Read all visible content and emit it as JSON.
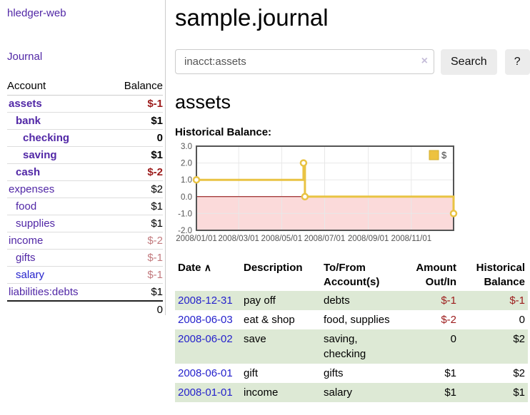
{
  "sidebar": {
    "title": "hledger-web",
    "journal_link": "Journal",
    "columns": [
      "Account",
      "Balance"
    ],
    "accounts": [
      {
        "name": "assets",
        "level": 1,
        "bold": true,
        "balance": "$-1"
      },
      {
        "name": "bank",
        "level": 2,
        "bold": true,
        "balance": "$1"
      },
      {
        "name": "checking",
        "level": 3,
        "bold": true,
        "balance": "0"
      },
      {
        "name": "saving",
        "level": 3,
        "bold": true,
        "balance": "$1"
      },
      {
        "name": "cash",
        "level": 2,
        "bold": true,
        "balance": "$-2"
      },
      {
        "name": "expenses",
        "level": 1,
        "bold": false,
        "balance": "$2"
      },
      {
        "name": "food",
        "level": 2,
        "bold": false,
        "balance": "$1"
      },
      {
        "name": "supplies",
        "level": 2,
        "bold": false,
        "balance": "$1"
      },
      {
        "name": "income",
        "level": 1,
        "bold": false,
        "balance": "$-2"
      },
      {
        "name": "gifts",
        "level": 2,
        "bold": false,
        "balance": "$-1"
      },
      {
        "name": "salary",
        "level": 2,
        "bold": false,
        "balance": "$-1",
        "blue": true
      },
      {
        "name": "liabilities:debts",
        "level": 1,
        "bold": false,
        "balance": "$1"
      }
    ],
    "total": "0"
  },
  "header": {
    "title": "sample.journal"
  },
  "search": {
    "value": "inacct:assets",
    "clear_icon": "×",
    "button_label": "Search",
    "help_label": "?"
  },
  "main": {
    "account_heading": "assets",
    "chart_label": "Historical Balance:"
  },
  "chart_data": {
    "type": "line",
    "step": true,
    "title": "Historical Balance of assets",
    "legend": [
      {
        "label": "$",
        "color": "#edc240"
      }
    ],
    "legend_position": "top-right",
    "grid": true,
    "ylim": [
      -2,
      3
    ],
    "xlim_days": [
      0,
      365
    ],
    "y_ticks": [
      {
        "v": 3,
        "label": "3.0"
      },
      {
        "v": 2,
        "label": "2.0"
      },
      {
        "v": 1,
        "label": "1.0"
      },
      {
        "v": 0,
        "label": "0.0"
      },
      {
        "v": -1,
        "label": "-1.0"
      },
      {
        "v": -2,
        "label": "-2.0"
      }
    ],
    "x_ticks": [
      {
        "day": 0,
        "label": "2008/01/01"
      },
      {
        "day": 60,
        "label": "2008/03/01"
      },
      {
        "day": 121,
        "label": "2008/05/01"
      },
      {
        "day": 182,
        "label": "2008/07/01"
      },
      {
        "day": 244,
        "label": "2008/09/01"
      },
      {
        "day": 305,
        "label": "2008/11/01"
      }
    ],
    "series": [
      {
        "name": "$",
        "color": "#e9c343",
        "points": [
          {
            "date": "2008-01-01",
            "day": 0,
            "value": 1
          },
          {
            "date": "2008-06-01",
            "day": 152,
            "value": 2
          },
          {
            "date": "2008-06-03",
            "day": 154,
            "value": 0
          },
          {
            "date": "2008-12-31",
            "day": 365,
            "value": -1
          }
        ]
      }
    ],
    "negative_region_color": "#fbdada",
    "zero_line_color": "#8b0000",
    "border_color": "#545454",
    "grid_color": "#e8e8e8",
    "tick_text_color": "#545454"
  },
  "register": {
    "columns": [
      "Date",
      "Description",
      "To/From Account(s)",
      "Amount Out/In",
      "Historical Balance"
    ],
    "sort_icon": "∧",
    "rows": [
      {
        "date": "2008-12-31",
        "description": "pay off",
        "accounts": "debts",
        "amount": "$-1",
        "balance": "$-1"
      },
      {
        "date": "2008-06-03",
        "description": "eat & shop",
        "accounts": "food, supplies",
        "amount": "$-2",
        "balance": "0"
      },
      {
        "date": "2008-06-02",
        "description": "save",
        "accounts": "saving, checking",
        "amount": "0",
        "balance": "$2"
      },
      {
        "date": "2008-06-01",
        "description": "gift",
        "accounts": "gifts",
        "amount": "$1",
        "balance": "$2"
      },
      {
        "date": "2008-01-01",
        "description": "income",
        "accounts": "salary",
        "amount": "$1",
        "balance": "$1"
      }
    ]
  }
}
